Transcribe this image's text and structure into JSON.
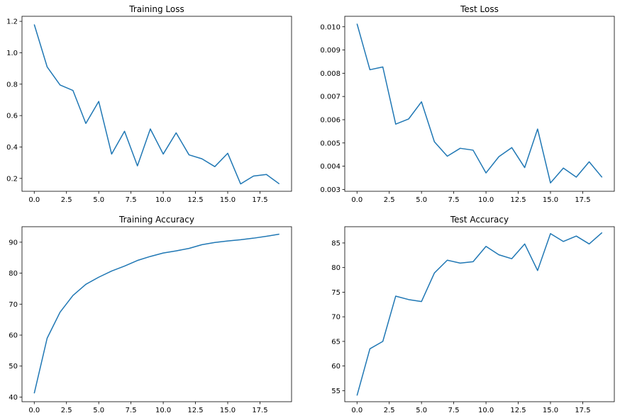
{
  "chart_data": [
    {
      "type": "line",
      "title": "Training Loss",
      "xlabel": "",
      "ylabel": "",
      "xlim": [
        -0.95,
        19.95
      ],
      "ylim": [
        0.118,
        1.232
      ],
      "xticks": [
        0.0,
        2.5,
        5.0,
        7.5,
        10.0,
        12.5,
        15.0,
        17.5
      ],
      "xtick_labels": [
        "0.0",
        "2.5",
        "5.0",
        "7.5",
        "10.0",
        "12.5",
        "15.0",
        "17.5"
      ],
      "yticks": [
        0.2,
        0.4,
        0.6,
        0.8,
        1.0,
        1.2
      ],
      "ytick_labels": [
        "0.2",
        "0.4",
        "0.6",
        "0.8",
        "1.0",
        "1.2"
      ],
      "grid": false,
      "color": "#1f77b4",
      "x": [
        0,
        1,
        2,
        3,
        4,
        5,
        6,
        7,
        8,
        9,
        10,
        11,
        12,
        13,
        14,
        15,
        16,
        17,
        18,
        19
      ],
      "y": [
        1.18,
        0.91,
        0.795,
        0.76,
        0.55,
        0.69,
        0.355,
        0.5,
        0.28,
        0.515,
        0.355,
        0.49,
        0.35,
        0.325,
        0.275,
        0.36,
        0.165,
        0.215,
        0.225,
        0.165
      ]
    },
    {
      "type": "line",
      "title": "Test Loss",
      "xlabel": "",
      "ylabel": "",
      "xlim": [
        -0.95,
        19.95
      ],
      "ylim": [
        0.00292,
        0.01045
      ],
      "xticks": [
        0.0,
        2.5,
        5.0,
        7.5,
        10.0,
        12.5,
        15.0,
        17.5
      ],
      "xtick_labels": [
        "0.0",
        "2.5",
        "5.0",
        "7.5",
        "10.0",
        "12.5",
        "15.0",
        "17.5"
      ],
      "yticks": [
        0.003,
        0.004,
        0.005,
        0.006,
        0.007,
        0.008,
        0.009,
        0.01
      ],
      "ytick_labels": [
        "0.003",
        "0.004",
        "0.005",
        "0.006",
        "0.007",
        "0.008",
        "0.009",
        "0.010"
      ],
      "grid": false,
      "color": "#1f77b4",
      "x": [
        0,
        1,
        2,
        3,
        4,
        5,
        6,
        7,
        8,
        9,
        10,
        11,
        12,
        13,
        14,
        15,
        16,
        17,
        18,
        19
      ],
      "y": [
        0.01013,
        0.00815,
        0.00827,
        0.00581,
        0.00603,
        0.00677,
        0.00505,
        0.00443,
        0.00477,
        0.00469,
        0.00371,
        0.00441,
        0.0048,
        0.00394,
        0.0056,
        0.00328,
        0.00392,
        0.00353,
        0.00419,
        0.00352
      ]
    },
    {
      "type": "line",
      "title": "Training Accuracy",
      "xlabel": "",
      "ylabel": "",
      "xlim": [
        -0.95,
        19.95
      ],
      "ylim": [
        38.5,
        95.0
      ],
      "xticks": [
        0.0,
        2.5,
        5.0,
        7.5,
        10.0,
        12.5,
        15.0,
        17.5
      ],
      "xtick_labels": [
        "0.0",
        "2.5",
        "5.0",
        "7.5",
        "10.0",
        "12.5",
        "15.0",
        "17.5"
      ],
      "yticks": [
        40,
        50,
        60,
        70,
        80,
        90
      ],
      "ytick_labels": [
        "40",
        "50",
        "60",
        "70",
        "80",
        "90"
      ],
      "grid": false,
      "color": "#1f77b4",
      "x": [
        0,
        1,
        2,
        3,
        4,
        5,
        6,
        7,
        8,
        9,
        10,
        11,
        12,
        13,
        14,
        15,
        16,
        17,
        18,
        19
      ],
      "y": [
        41.2,
        59.0,
        67.4,
        72.8,
        76.4,
        78.7,
        80.7,
        82.3,
        84.1,
        85.4,
        86.5,
        87.2,
        88.0,
        89.2,
        89.9,
        90.4,
        90.8,
        91.3,
        91.9,
        92.6
      ]
    },
    {
      "type": "line",
      "title": "Test Accuracy",
      "xlabel": "",
      "ylabel": "",
      "xlim": [
        -0.95,
        19.95
      ],
      "ylim": [
        52.75,
        88.3
      ],
      "xticks": [
        0.0,
        2.5,
        5.0,
        7.5,
        10.0,
        12.5,
        15.0,
        17.5
      ],
      "xtick_labels": [
        "0.0",
        "2.5",
        "5.0",
        "7.5",
        "10.0",
        "12.5",
        "15.0",
        "17.5"
      ],
      "yticks": [
        55,
        60,
        65,
        70,
        75,
        80,
        85
      ],
      "ytick_labels": [
        "55",
        "60",
        "65",
        "70",
        "75",
        "80",
        "85"
      ],
      "grid": false,
      "color": "#1f77b4",
      "x": [
        0,
        1,
        2,
        3,
        4,
        5,
        6,
        7,
        8,
        9,
        10,
        11,
        12,
        13,
        14,
        15,
        16,
        17,
        18,
        19
      ],
      "y": [
        54.0,
        63.5,
        65.0,
        74.2,
        73.5,
        73.1,
        78.9,
        81.5,
        80.9,
        81.2,
        84.3,
        82.6,
        81.8,
        84.8,
        79.4,
        86.9,
        85.3,
        86.4,
        84.8,
        87.1
      ]
    }
  ]
}
